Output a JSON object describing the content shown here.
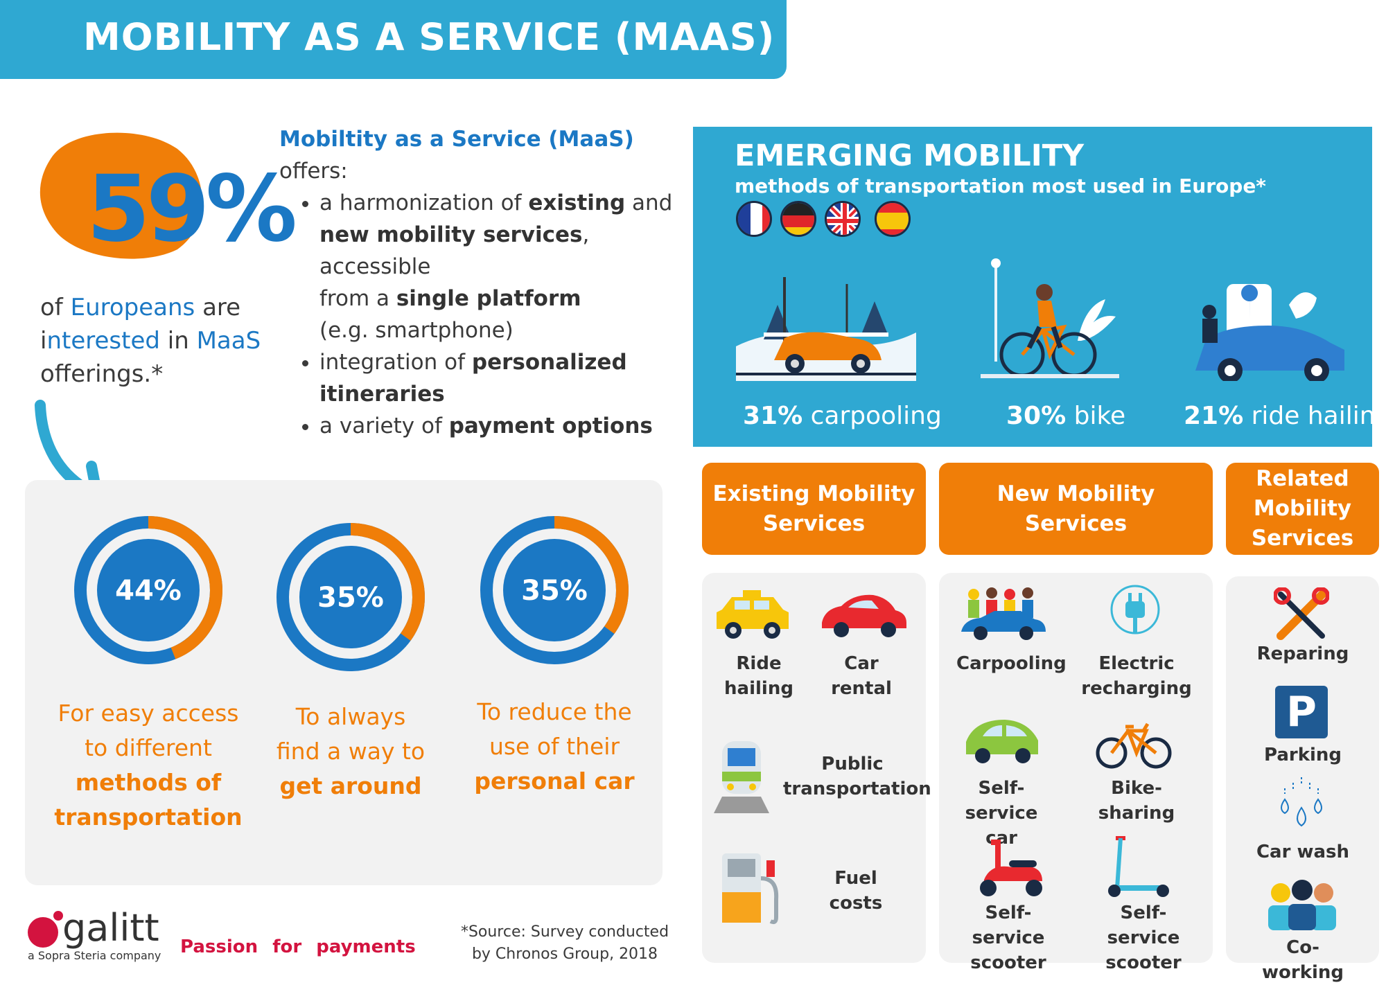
{
  "header": {
    "title": "MOBILITY AS A SERVICE (MAAS)"
  },
  "intro": {
    "percent": "59%",
    "line1a": "of ",
    "line1b": "Europeans",
    "line1c": " are",
    "line2a": "i",
    "line2b": "nterested",
    "line2c": " in ",
    "line2d": "MaaS",
    "line3": "offerings.*"
  },
  "maas": {
    "title": "Mobiltity as a Service (MaaS)",
    "offers": "offers:",
    "b1_p1": "a harmonization of ",
    "b1_b1": "existing",
    "b1_p2": " and",
    "b1_b2": "new mobility services",
    "b1_p3": ", accessible",
    "b1_p4": "from a ",
    "b1_b3": "single platform",
    "b1_p5": "(e.g. smartphone)",
    "b2_p1": "integration of ",
    "b2_b1": "personalized",
    "b2_b2": "itineraries",
    "b3_p1": "a variety of ",
    "b3_b1": "payment options"
  },
  "reasons": [
    {
      "pct": "44%",
      "value": 0.44,
      "l1": "For easy access",
      "l2": "to different",
      "b1": "methods of",
      "b2": "transportation"
    },
    {
      "pct": "35%",
      "value": 0.35,
      "l1": "To always",
      "l2": "find a way to",
      "b1": "get around",
      "b2": ""
    },
    {
      "pct": "35%",
      "value": 0.35,
      "l1": "To reduce the",
      "l2": "use of their",
      "b1": "personal car",
      "b2": ""
    }
  ],
  "emerging": {
    "title": "EMERGING MOBILITY",
    "subtitle": "methods of transportation most used in Europe*",
    "stats": [
      {
        "pct": "31%",
        "label": " carpooling"
      },
      {
        "pct": "30%",
        "label": " bike"
      },
      {
        "pct": "21%",
        "label": " ride hailing"
      }
    ]
  },
  "categories": {
    "existing": "Existing Mobility\nServices",
    "new": "New Mobility\nServices",
    "related": "Related\nMobility\nServices"
  },
  "existing_items": {
    "ride": "Ride\nhailing",
    "rental": "Car\nrental",
    "public": "Public\ntransportation",
    "fuel": "Fuel\ncosts"
  },
  "new_items": {
    "carpool": "Carpooling",
    "electric": "Electric\nrecharging",
    "selfcar": "Self-service\ncar",
    "bikeshare": "Bike-sharing",
    "selfscooter": "Self-service\nscooter",
    "selfkick": "Self-service\nscooter"
  },
  "related_items": {
    "repair": "Reparing",
    "parking": "Parking",
    "parking_letter": "P",
    "wash": "Car wash",
    "cowork": "Co-working"
  },
  "footer": {
    "logo": "galitt",
    "logo_sub": "a Sopra Steria company",
    "tagline": "Passion for payments",
    "source": "*Source: Survey conducted by Chronos Group, 2018"
  },
  "colors": {
    "blue": "#1b78c4",
    "light_blue": "#2fa8d2",
    "orange": "#f07e08",
    "gray": "#f2f2f2"
  }
}
